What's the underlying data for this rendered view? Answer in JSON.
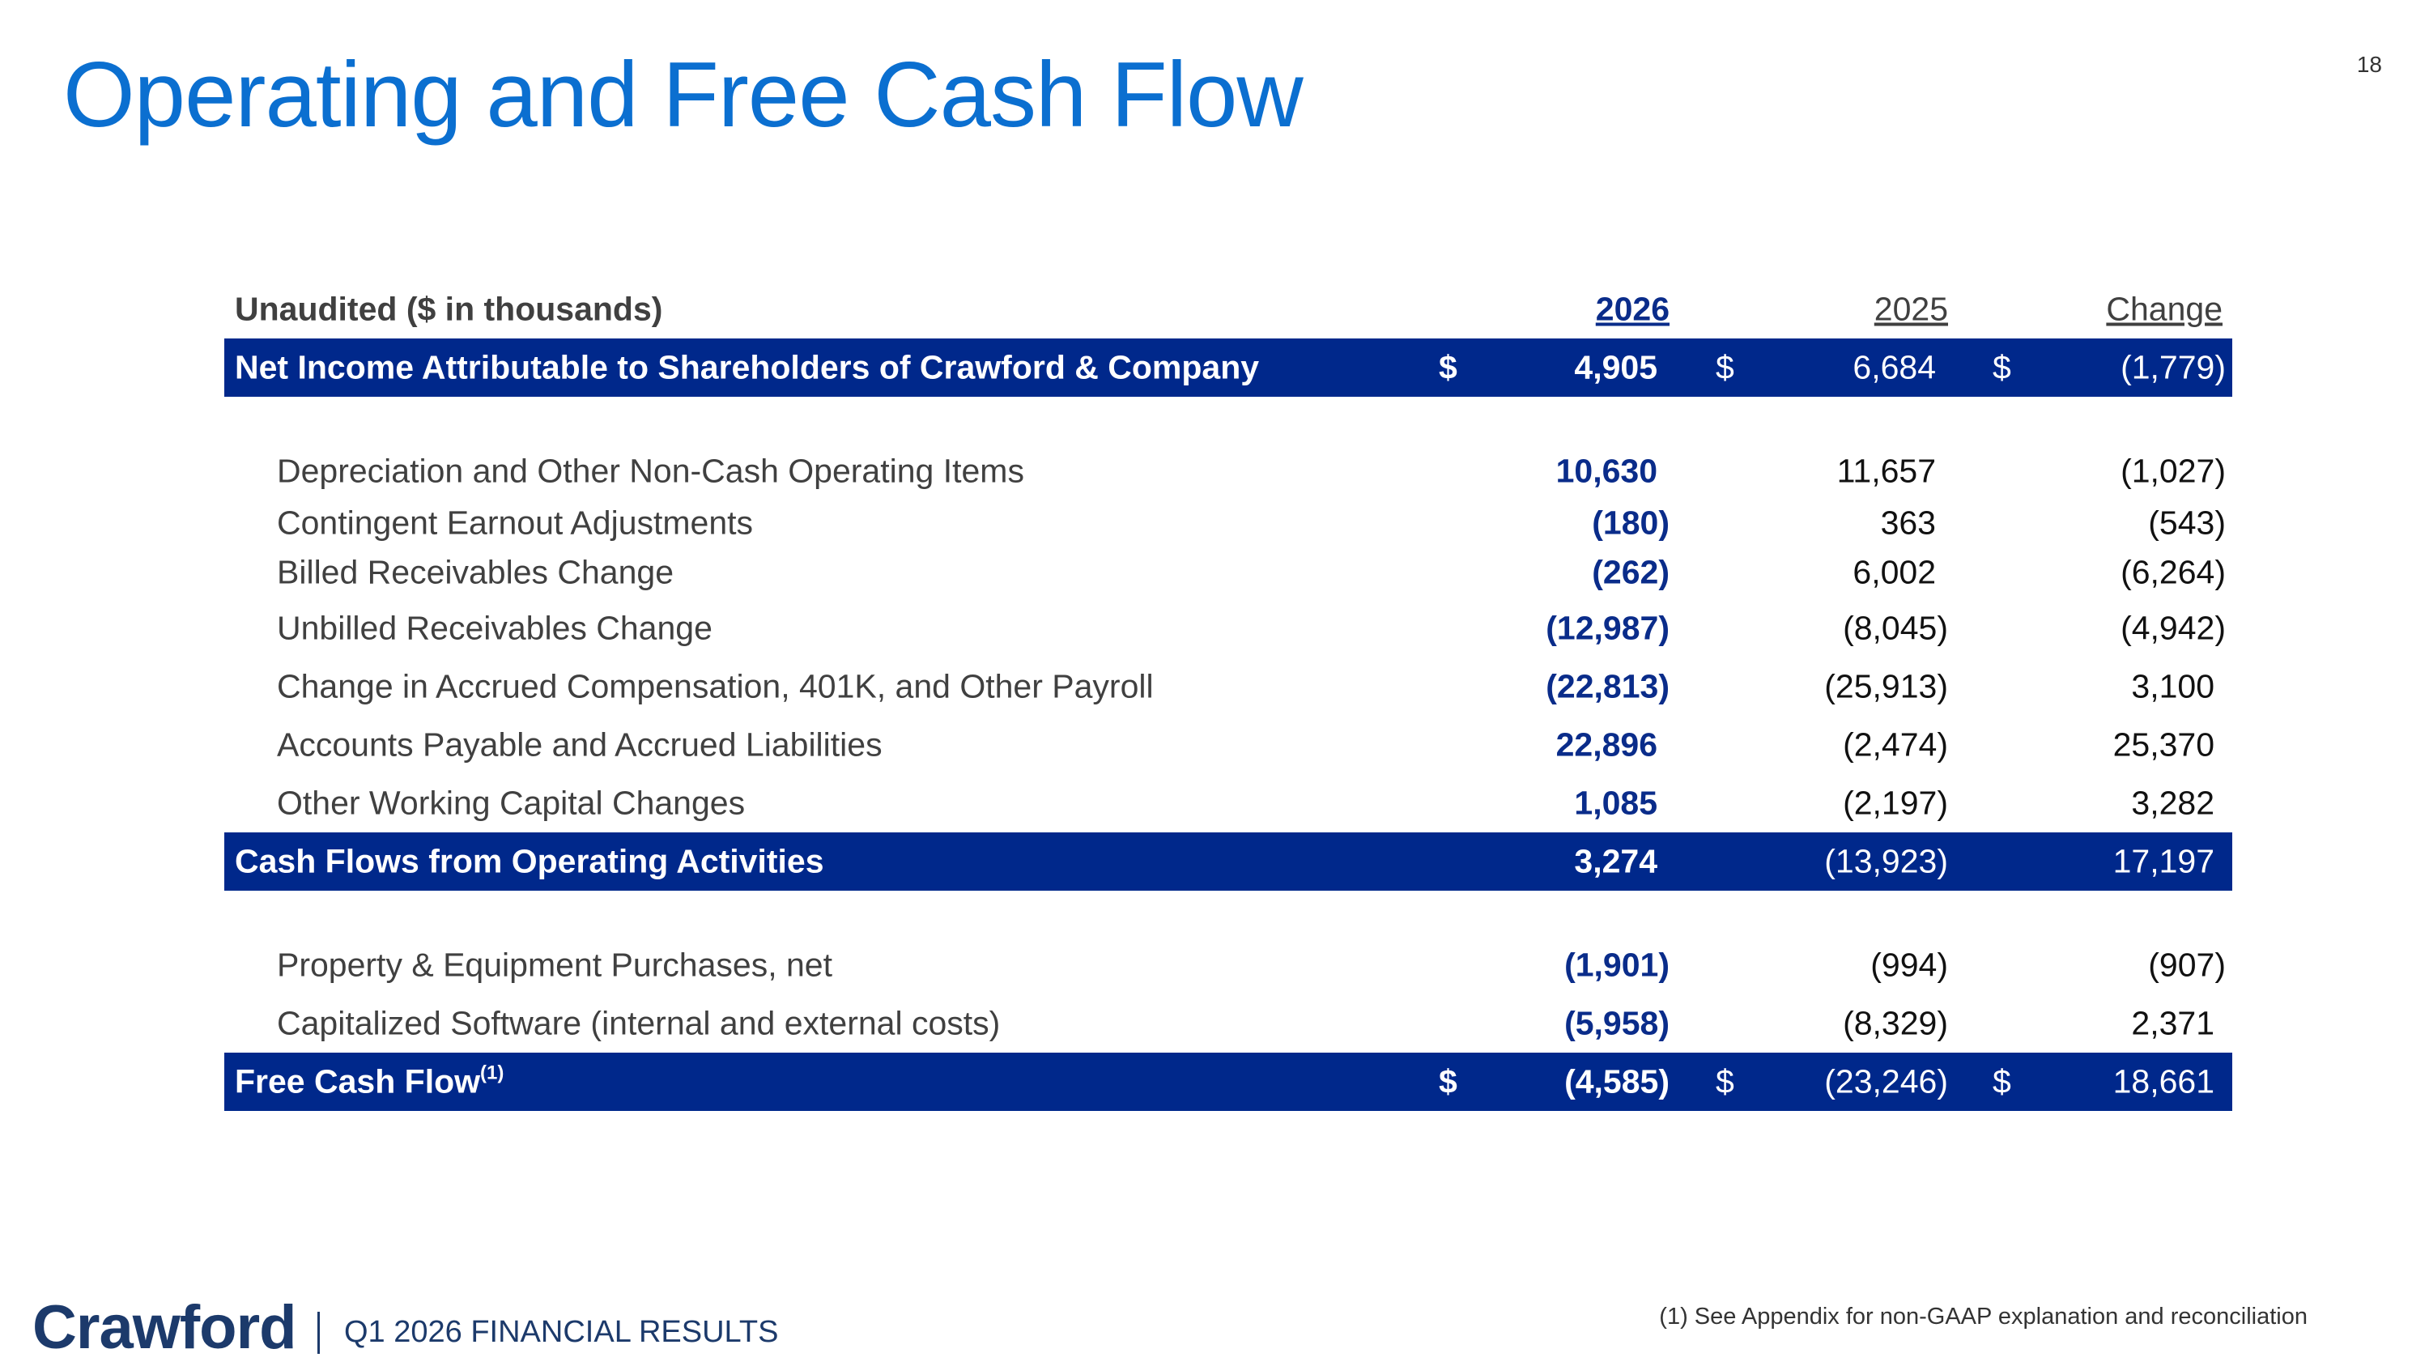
{
  "header": {
    "title": "Operating and Free Cash Flow",
    "page_number": "18"
  },
  "table": {
    "header": {
      "label": "Unaudited ($ in thousands)",
      "col_2026": "2026",
      "col_2025": "2025",
      "col_change": "Change"
    },
    "net_income": {
      "label": "Net Income Attributable to Shareholders of Crawford & Company",
      "currency": "$",
      "v2026": "4,905",
      "v2025": "6,684",
      "change": "(1,779)"
    },
    "items": [
      {
        "label": "Depreciation and Other Non-Cash Operating Items",
        "v2026": "10,630",
        "v2025": "11,657",
        "change": "(1,027)"
      },
      {
        "label": "Contingent Earnout Adjustments",
        "v2026": "(180)",
        "v2025": "363",
        "change": "(543)"
      },
      {
        "label": "Billed Receivables Change",
        "v2026": "(262)",
        "v2025": "6,002",
        "change": "(6,264)"
      },
      {
        "label": "Unbilled Receivables Change",
        "v2026": "(12,987)",
        "v2025": "(8,045)",
        "change": "(4,942)"
      },
      {
        "label": "Change in Accrued Compensation, 401K, and Other Payroll",
        "v2026": "(22,813)",
        "v2025": "(25,913)",
        "change": "3,100"
      },
      {
        "label": "Accounts Payable and Accrued Liabilities",
        "v2026": "22,896",
        "v2025": "(2,474)",
        "change": "25,370"
      },
      {
        "label": "Other Working Capital Changes",
        "v2026": "1,085",
        "v2025": "(2,197)",
        "change": "3,282"
      }
    ],
    "operating": {
      "label": "Cash Flows from Operating Activities",
      "v2026": "3,274",
      "v2025": "(13,923)",
      "change": "17,197"
    },
    "capex_items": [
      {
        "label": "Property & Equipment Purchases, net",
        "v2026": "(1,901)",
        "v2025": "(994)",
        "change": "(907)"
      },
      {
        "label": "Capitalized Software (internal and external costs)",
        "v2026": "(5,958)",
        "v2025": "(8,329)",
        "change": "2,371"
      }
    ],
    "free_cash_flow": {
      "label": "Free Cash Flow",
      "note_mark": "(1)",
      "currency": "$",
      "v2026": "(4,585)",
      "v2025": "(23,246)",
      "change": "18,661"
    }
  },
  "footer": {
    "logo_text": "Crawford",
    "subtitle": "Q1 2026 FINANCIAL RESULTS",
    "footnote": "(1) See Appendix for non-GAAP explanation and reconciliation"
  },
  "colors": {
    "title": "#0B6FD0",
    "band": "#00288B",
    "value_2026": "#0A2C8A",
    "brand": "#1C3A6B"
  }
}
